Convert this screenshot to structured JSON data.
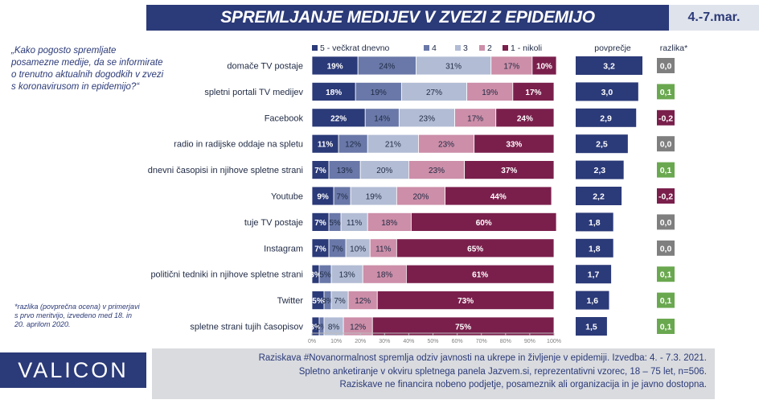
{
  "header": {
    "title": "SPREMLJANJE MEDIJEV V ZVEZI Z EPIDEMIJO",
    "date": "4.-7.mar."
  },
  "question": "„Kako pogosto spremljate posamezne medije, da se informirate o trenutno aktualnih dogodkih v zvezi s koronavirusom in epidemijo?“",
  "footnote": "*razlika (povprečna ocena) v primerjavi s prvo meritvijo, izvedeno med 18. in 20. aprilom 2020.",
  "logo": "VALICON",
  "info": [
    "Raziskava #Novanormalnost spremlja odziv javnosti na ukrepe in življenje v epidemiji. Izvedba: 4. - 7.3. 2021.",
    "Spletno anketiranje v okviru spletnega panela Jazvem.si, reprezentativni vzorec, 18 – 75 let, n=506.",
    "Raziskave ne financira nobeno podjetje, posameznik ali organizacija in je javno dostopna."
  ],
  "colors": [
    "#2b3a78",
    "#6978a8",
    "#b2bcd4",
    "#cc8ea8",
    "#7a1f4c"
  ],
  "avg_color": "#2b3a78",
  "diff_colors": {
    "neutral": "#7f7f7f",
    "positive": "#6aa84f",
    "negative": "#7a1f4c"
  },
  "chart_data": [
    {
      "type": "bar",
      "stacked": true,
      "orientation": "horizontal",
      "categories": [
        "domače TV postaje",
        "spletni portali TV medijev",
        "Facebook",
        "radio in radijske oddaje na spletu",
        "dnevni časopisi in njihove spletne strani",
        "Youtube",
        "tuje TV postaje",
        "Instagram",
        "politični tedniki in njihove spletne strani",
        "Twitter",
        "spletne strani tujih časopisov"
      ],
      "series": [
        {
          "name": "5 - večkrat dnevno",
          "values": [
            19,
            18,
            22,
            11,
            7,
            9,
            7,
            7,
            3,
            5,
            3
          ]
        },
        {
          "name": "4",
          "values": [
            24,
            19,
            14,
            12,
            13,
            7,
            5,
            7,
            5,
            3,
            2
          ]
        },
        {
          "name": "3",
          "values": [
            31,
            27,
            23,
            21,
            20,
            19,
            11,
            10,
            13,
            7,
            8
          ]
        },
        {
          "name": "2",
          "values": [
            17,
            19,
            17,
            23,
            23,
            20,
            18,
            11,
            18,
            12,
            12
          ]
        },
        {
          "name": "1 - nikoli",
          "values": [
            10,
            17,
            24,
            33,
            37,
            44,
            60,
            65,
            61,
            73,
            75
          ]
        }
      ],
      "xlim": [
        0,
        100
      ],
      "ticks": [
        "0%",
        "10%",
        "20%",
        "30%",
        "40%",
        "50%",
        "60%",
        "70%",
        "80%",
        "90%",
        "100%"
      ],
      "legend_position": "top"
    },
    {
      "type": "bar",
      "orientation": "horizontal",
      "title": "povprečje",
      "categories": [
        "domače TV postaje",
        "spletni portali TV medijev",
        "Facebook",
        "radio in radijske oddaje na spletu",
        "dnevni časopisi in njihove spletne strani",
        "Youtube",
        "tuje TV postaje",
        "Instagram",
        "politični tedniki in njihove spletne strani",
        "Twitter",
        "spletne strani tujih časopisov"
      ],
      "values": [
        3.2,
        3.0,
        2.9,
        2.5,
        2.3,
        2.2,
        1.8,
        1.8,
        1.7,
        1.6,
        1.5
      ],
      "labels": [
        "3,2",
        "3,0",
        "2,9",
        "2,5",
        "2,3",
        "2,2",
        "1,8",
        "1,8",
        "1,7",
        "1,6",
        "1,5"
      ]
    },
    {
      "type": "table",
      "title": "razlika*",
      "values": [
        0.0,
        0.1,
        -0.2,
        0.0,
        0.1,
        -0.2,
        0.0,
        0.0,
        0.1,
        0.1,
        0.1
      ],
      "labels": [
        "0,0",
        "0,1",
        "-0,2",
        "0,0",
        "0,1",
        "-0,2",
        "0,0",
        "0,0",
        "0,1",
        "0,1",
        "0,1"
      ]
    }
  ]
}
